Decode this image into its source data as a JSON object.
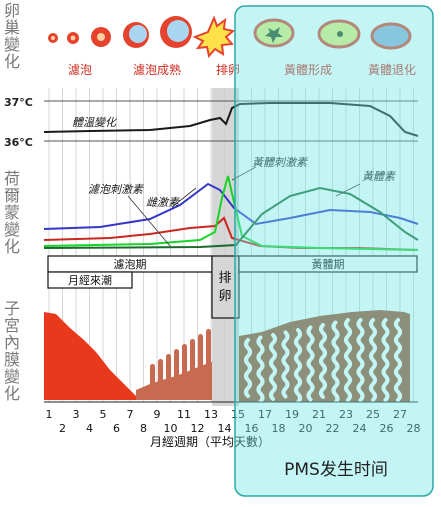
{
  "labels": {
    "ovary_change": "卵巢變化",
    "hormone_change": "荷爾蒙變化",
    "endometrium_change": "子宮內膜變化",
    "temp_high": "37°C",
    "temp_low": "36°C",
    "temp_curve": "體溫變化",
    "estrogen": "雌激素",
    "fsh": "濾泡刺激素",
    "lh": "黃體刺激素",
    "progesterone": "黃體素",
    "x_axis_title": "月經週期（平均天數）",
    "pms": "PMS发生时间"
  },
  "ovary_stages": [
    "濾泡",
    "濾泡成熟",
    "排卵",
    "黃體形成",
    "黃體退化"
  ],
  "phases": {
    "follicular": "濾泡期",
    "menstruation": "月經來潮",
    "ovulation": "排卵",
    "luteal": "黃體期"
  },
  "days_top": [
    "1",
    "3",
    "5",
    "7",
    "9",
    "11",
    "13",
    "15",
    "17",
    "19",
    "21",
    "23",
    "25",
    "27"
  ],
  "days_bottom": [
    "2",
    "4",
    "6",
    "8",
    "10",
    "12",
    "14",
    "16",
    "18",
    "20",
    "22",
    "24",
    "26",
    "28"
  ],
  "colors": {
    "label_red": "#d22b1f",
    "estrogen": "#3535c8",
    "fsh": "#c8281e",
    "lh": "#18d428",
    "progesterone": "#1d6a2e",
    "highlight": "#6fe6e6",
    "endometrium": "#e8391c",
    "luteal_tissue": "#a0522d"
  }
}
